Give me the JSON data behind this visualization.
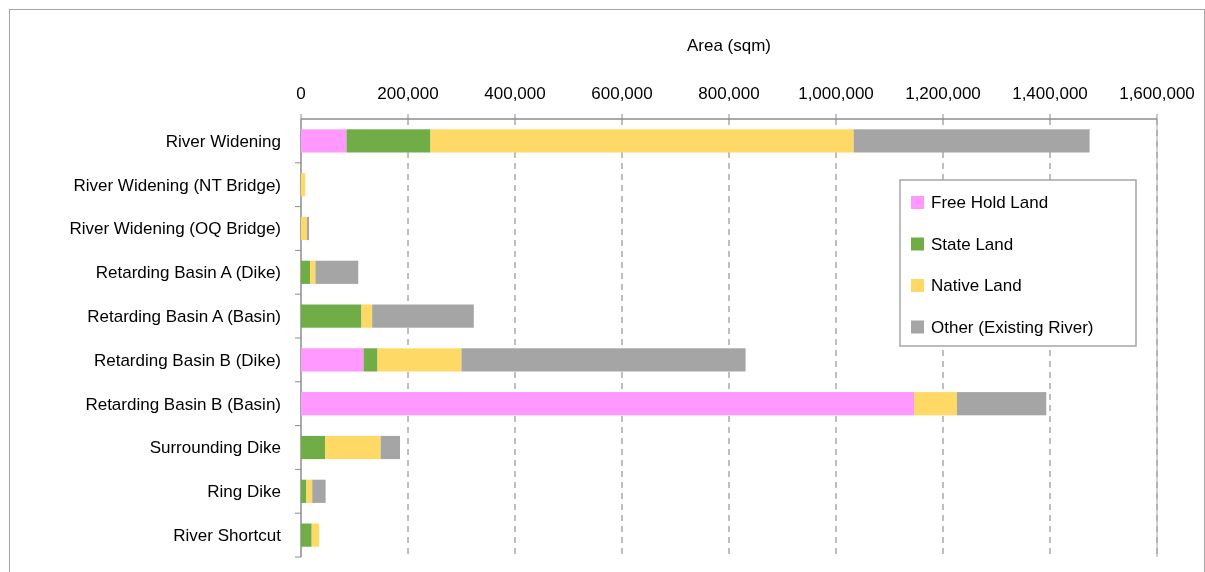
{
  "chart_data": {
    "type": "bar",
    "orientation": "horizontal",
    "stacked": true,
    "xlabel": "Area (sqm)",
    "categories": [
      "River Widening",
      "River Widening (NT Bridge)",
      "River Widening (OQ Bridge)",
      "Retarding Basin A (Dike)",
      "Retarding Basin A (Basin)",
      "Retarding Basin B (Dike)",
      "Retarding Basin B (Basin)",
      "Surrounding Dike",
      "Ring Dike",
      "River Shortcut"
    ],
    "series": [
      {
        "name": "Free Hold Land",
        "color": "#ff99ff",
        "values": [
          85000,
          0,
          0,
          0,
          0,
          117000,
          1146000,
          0,
          0,
          0
        ]
      },
      {
        "name": "State Land",
        "color": "#70ad47",
        "values": [
          157000,
          0,
          0,
          17000,
          113000,
          26000,
          0,
          45000,
          10000,
          20000
        ]
      },
      {
        "name": "Native Land",
        "color": "#ffd966",
        "values": [
          791000,
          8000,
          11000,
          10000,
          20000,
          157000,
          80000,
          104000,
          11000,
          14000
        ]
      },
      {
        "name": "Other (Existing River)",
        "color": "#a5a5a5",
        "values": [
          441000,
          0,
          4000,
          80000,
          190000,
          531000,
          167000,
          36000,
          25000,
          0
        ]
      }
    ],
    "xlim": [
      0,
      1600000
    ],
    "xticks": [
      {
        "value": 0,
        "label": "0"
      },
      {
        "value": 200000,
        "label": "200,000"
      },
      {
        "value": 400000,
        "label": "400,000"
      },
      {
        "value": 600000,
        "label": "600,000"
      },
      {
        "value": 800000,
        "label": "800,000"
      },
      {
        "value": 1000000,
        "label": "1,000,000"
      },
      {
        "value": 1200000,
        "label": "1,200,000"
      },
      {
        "value": 1400000,
        "label": "1,400,000"
      },
      {
        "value": 1600000,
        "label": "1,600,000"
      }
    ],
    "grid": "x",
    "legend": "right"
  }
}
